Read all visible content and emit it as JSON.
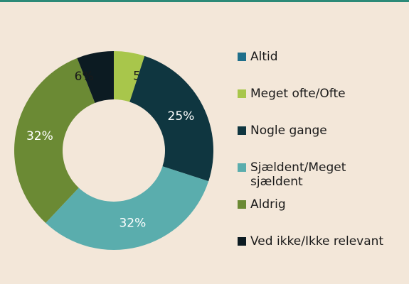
{
  "chart_data": {
    "type": "donut",
    "categories": [
      "Altid",
      "Meget ofte/Ofte",
      "Nogle gange",
      "Sjældent/Meget sjældent",
      "Aldrig",
      "Ved ikke/Ikke relevant"
    ],
    "values": [
      0,
      5,
      25,
      32,
      32,
      6
    ],
    "value_labels": [
      "0%",
      "5%",
      "25%",
      "32%",
      "32%",
      "6%"
    ],
    "colors": [
      "#1f6f8b",
      "#a8c64b",
      "#0f3640",
      "#5aadad",
      "#6b8a34",
      "#0c1b22"
    ],
    "legend": "right"
  }
}
